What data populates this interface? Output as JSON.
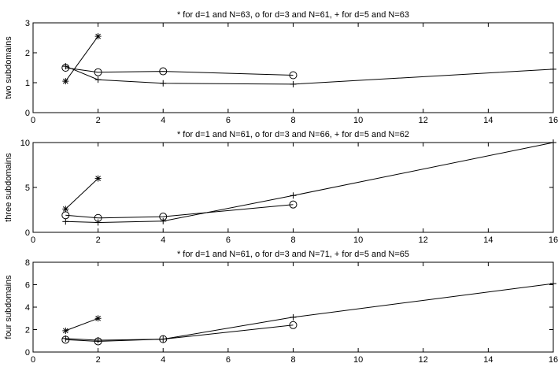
{
  "chart_data": [
    {
      "type": "line",
      "title": "* for d=1 and N=63, o for d=3 and N=61, + for d=5 and N=63",
      "xlabel": "",
      "ylabel": "two subdomains",
      "xlim": [
        0,
        16
      ],
      "ylim": [
        0,
        3
      ],
      "xticks": [
        0,
        2,
        4,
        6,
        8,
        10,
        12,
        14,
        16
      ],
      "yticks": [
        0,
        1,
        2,
        3
      ],
      "grid": false,
      "series": [
        {
          "marker": "*",
          "x": [
            1,
            2
          ],
          "y": [
            1.05,
            2.55
          ]
        },
        {
          "marker": "o",
          "x": [
            1,
            2,
            4,
            8
          ],
          "y": [
            1.5,
            1.35,
            1.38,
            1.25
          ]
        },
        {
          "marker": "+",
          "x": [
            1,
            2,
            4,
            8,
            16
          ],
          "y": [
            1.55,
            1.1,
            0.98,
            0.95,
            1.45
          ]
        }
      ]
    },
    {
      "type": "line",
      "title": "* for d=1 and N=61, o for d=3 and N=66, + for d=5 and N=62",
      "xlabel": "",
      "ylabel": "three subdomains",
      "xlim": [
        0,
        16
      ],
      "ylim": [
        0,
        10
      ],
      "xticks": [
        0,
        2,
        4,
        6,
        8,
        10,
        12,
        14,
        16
      ],
      "yticks": [
        0,
        5,
        10
      ],
      "grid": false,
      "series": [
        {
          "marker": "*",
          "x": [
            1,
            2
          ],
          "y": [
            2.6,
            6.0
          ]
        },
        {
          "marker": "o",
          "x": [
            1,
            2,
            4,
            8
          ],
          "y": [
            1.9,
            1.6,
            1.75,
            3.1
          ]
        },
        {
          "marker": "+",
          "x": [
            1,
            2,
            4,
            8,
            16
          ],
          "y": [
            1.2,
            1.1,
            1.25,
            4.1,
            10.0
          ]
        }
      ]
    },
    {
      "type": "line",
      "title": "* for d=1 and N=61, o for d=3 and N=71, + for d=5 and N=65",
      "xlabel": "",
      "ylabel": "four subdomains",
      "xlim": [
        0,
        16
      ],
      "ylim": [
        0,
        8
      ],
      "xticks": [
        0,
        2,
        4,
        6,
        8,
        10,
        12,
        14,
        16
      ],
      "yticks": [
        0,
        2,
        4,
        6,
        8
      ],
      "grid": false,
      "series": [
        {
          "marker": "*",
          "x": [
            1,
            2
          ],
          "y": [
            1.9,
            3.0
          ]
        },
        {
          "marker": "o",
          "x": [
            1,
            2,
            4,
            8
          ],
          "y": [
            1.1,
            0.95,
            1.15,
            2.4
          ]
        },
        {
          "marker": "+",
          "x": [
            1,
            2,
            4,
            8,
            16
          ],
          "y": [
            1.2,
            1.05,
            1.15,
            3.1,
            6.1
          ]
        }
      ]
    }
  ]
}
